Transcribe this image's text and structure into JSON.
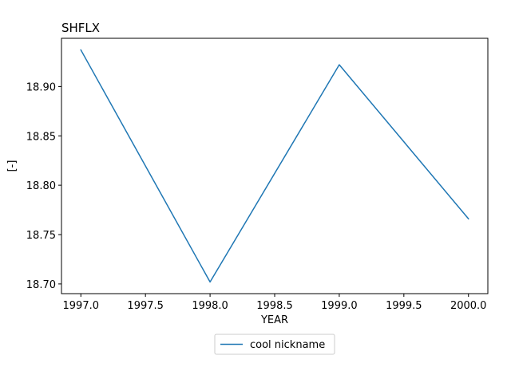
{
  "chart_data": {
    "type": "line",
    "title": "SHFLX",
    "xlabel": "YEAR",
    "ylabel": "[-]",
    "x": [
      1997.0,
      1998.0,
      1999.0,
      2000.0
    ],
    "series": [
      {
        "name": "cool nickname",
        "values": [
          18.937,
          18.702,
          18.922,
          18.766
        ],
        "color": "#1f77b4"
      }
    ],
    "xlim": [
      1996.85,
      2000.15
    ],
    "ylim": [
      18.6902,
      18.9488
    ],
    "xticks": [
      1997.0,
      1997.5,
      1998.0,
      1998.5,
      1999.0,
      1999.5,
      2000.0
    ],
    "xtick_labels": [
      "1997.0",
      "1997.5",
      "1998.0",
      "1998.5",
      "1999.0",
      "1999.5",
      "2000.0"
    ],
    "yticks": [
      18.7,
      18.75,
      18.8,
      18.85,
      18.9
    ],
    "ytick_labels": [
      "18.70",
      "18.75",
      "18.80",
      "18.85",
      "18.90"
    ],
    "grid": false,
    "legend_position": "bottom-center, below axes"
  }
}
